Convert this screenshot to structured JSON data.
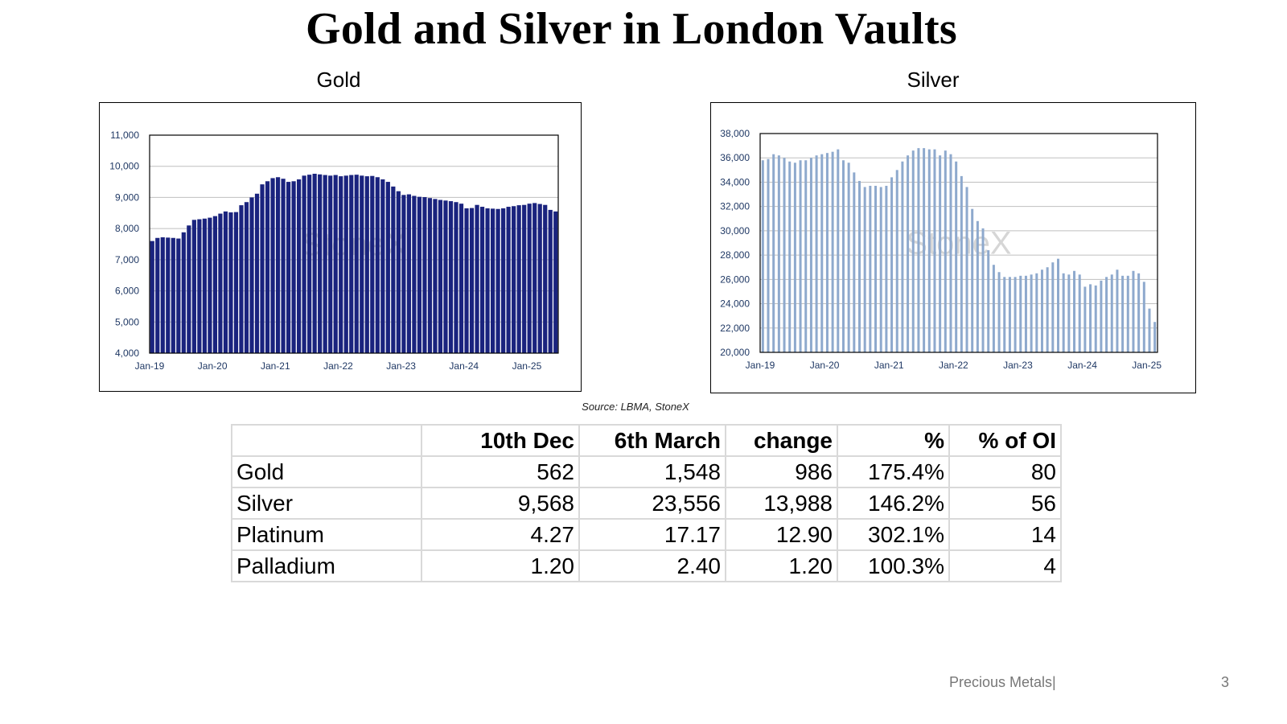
{
  "page": {
    "title": "Gold and Silver in London Vaults",
    "source": "Source: LBMA, StoneX",
    "footer_text": "Precious Metals|",
    "page_number": "3"
  },
  "chart_data": [
    {
      "type": "bar",
      "title": "Gold",
      "xlabel": "",
      "ylabel": "",
      "ylim": [
        4000,
        11000
      ],
      "yticks": [
        "4,000",
        "5,000",
        "6,000",
        "7,000",
        "8,000",
        "9,000",
        "10,000",
        "11,000"
      ],
      "xticks": [
        "Jan-19",
        "Jan-20",
        "Jan-21",
        "Jan-22",
        "Jan-23",
        "Jan-24",
        "Jan-25"
      ],
      "watermark": "StoneX",
      "bar_color": "#1a237e",
      "series": [
        {
          "values": [
            7600,
            7700,
            7720,
            7710,
            7700,
            7680,
            7880,
            8100,
            8280,
            8300,
            8320,
            8350,
            8400,
            8480,
            8550,
            8520,
            8530,
            8750,
            8850,
            9000,
            9120,
            9420,
            9520,
            9620,
            9650,
            9600,
            9500,
            9520,
            9580,
            9700,
            9730,
            9760,
            9740,
            9720,
            9700,
            9720,
            9680,
            9700,
            9720,
            9730,
            9700,
            9680,
            9690,
            9650,
            9580,
            9500,
            9350,
            9200,
            9080,
            9100,
            9050,
            9020,
            9010,
            8980,
            8950,
            8920,
            8900,
            8880,
            8850,
            8800,
            8650,
            8660,
            8760,
            8700,
            8650,
            8640,
            8630,
            8650,
            8700,
            8720,
            8750,
            8760,
            8800,
            8820,
            8790,
            8760,
            8600,
            8550
          ]
        }
      ]
    },
    {
      "type": "bar",
      "title": "Silver",
      "xlabel": "",
      "ylabel": "",
      "ylim": [
        20000,
        38000
      ],
      "yticks": [
        "20,000",
        "22,000",
        "24,000",
        "26,000",
        "28,000",
        "30,000",
        "32,000",
        "34,000",
        "36,000",
        "38,000"
      ],
      "xticks": [
        "Jan-19",
        "Jan-20",
        "Jan-21",
        "Jan-22",
        "Jan-23",
        "Jan-24",
        "Jan-25"
      ],
      "watermark": "StoneX",
      "bar_color": "#8ea9cd",
      "series": [
        {
          "values": [
            35800,
            35900,
            36300,
            36200,
            36000,
            35700,
            35600,
            35800,
            35800,
            36000,
            36200,
            36300,
            36400,
            36500,
            36700,
            35800,
            35600,
            34800,
            34100,
            33600,
            33700,
            33700,
            33600,
            33700,
            34400,
            35000,
            35700,
            36200,
            36600,
            36800,
            36800,
            36700,
            36700,
            36200,
            36600,
            36300,
            35700,
            34500,
            33600,
            31800,
            30800,
            30200,
            28400,
            27200,
            26600,
            26200,
            26200,
            26200,
            26300,
            26300,
            26400,
            26500,
            26800,
            27000,
            27400,
            27700,
            26500,
            26400,
            26700,
            26400,
            25400,
            25600,
            25500,
            25900,
            26200,
            26400,
            26800,
            26300,
            26300,
            26700,
            26500,
            25800,
            23600,
            22500
          ]
        }
      ]
    }
  ],
  "table": {
    "headers": [
      "",
      "10th Dec",
      "6th March",
      "change",
      "%",
      "% of OI"
    ],
    "rows": [
      [
        "Gold",
        "562",
        "1,548",
        "986",
        "175.4%",
        "80"
      ],
      [
        "Silver",
        "9,568",
        "23,556",
        "13,988",
        "146.2%",
        "56"
      ],
      [
        "Platinum",
        "4.27",
        "17.17",
        "12.90",
        "302.1%",
        "14"
      ],
      [
        "Palladium",
        "1.20",
        "2.40",
        "1.20",
        "100.3%",
        "4"
      ]
    ]
  }
}
